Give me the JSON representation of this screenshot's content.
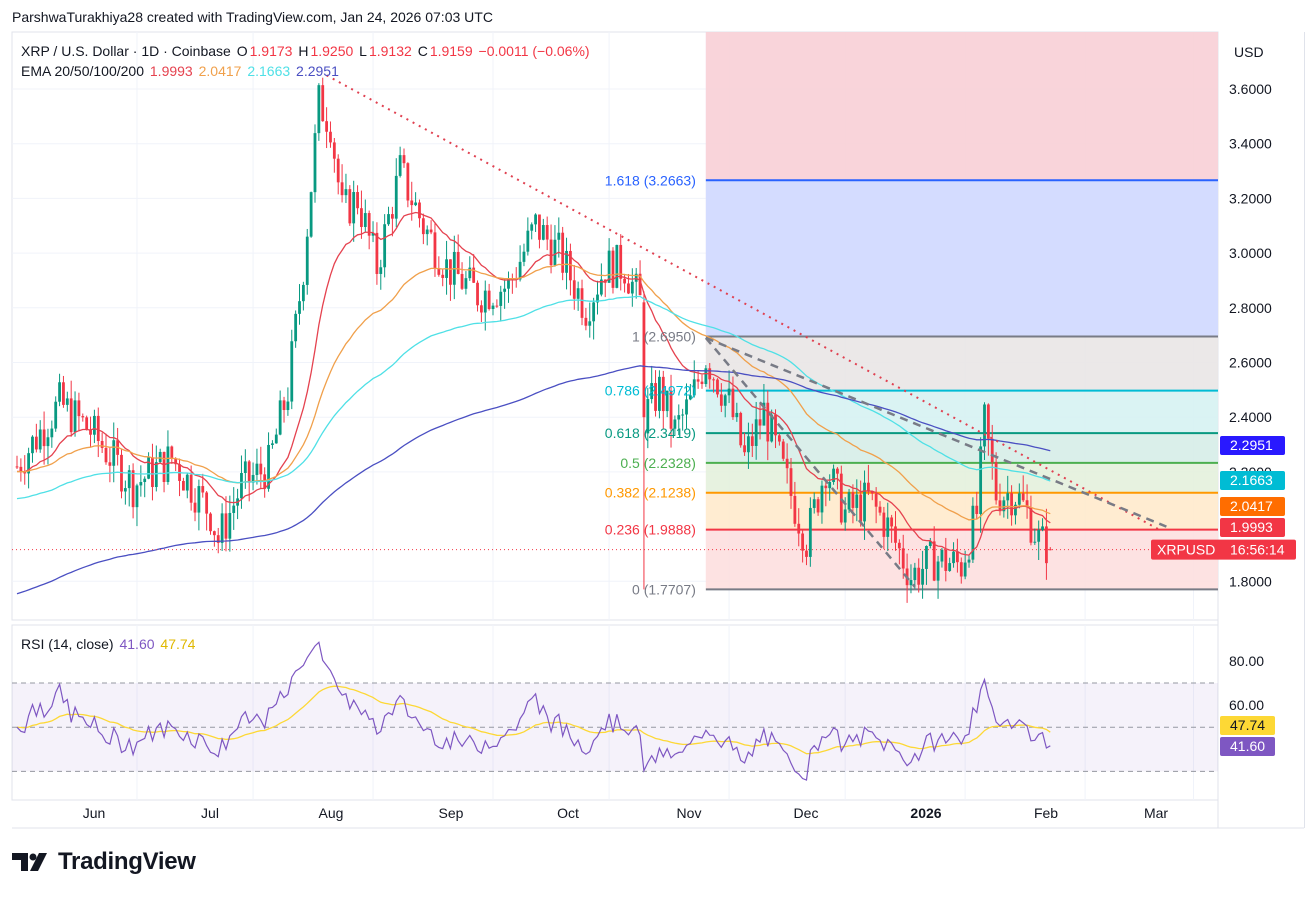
{
  "header": {
    "credit": "ParshwaTurakhiya28 created with TradingView.com, Jan 24, 2026 07:03 UTC"
  },
  "legend": {
    "symbol": "XRP / U.S. Dollar · 1D · Coinbase",
    "o_label": "O",
    "o": "1.9173",
    "h_label": "H",
    "h": "1.9250",
    "l_label": "L",
    "l": "1.9132",
    "c_label": "C",
    "c": "1.9159",
    "change": "−0.0011 (−0.06%)",
    "ema_label": "EMA 20/50/100/200",
    "ema_values": [
      "1.9993",
      "2.0417",
      "2.1663",
      "2.2951"
    ],
    "rsi_label": "RSI (14, close)",
    "rsi_values": [
      "41.60",
      "47.74"
    ]
  },
  "currency": "USD",
  "logo": {
    "text": "TradingView"
  },
  "colors": {
    "up": "#089981",
    "down": "#f23645",
    "ema20": "#e5424f",
    "ema50": "#f0a04b",
    "ema100": "#4fe0e6",
    "ema200": "#4a4fc2",
    "rsi": "#7e57c2",
    "rsi_ma": "#fdd835",
    "trend": "#e04050"
  },
  "chart_data": {
    "type": "candlestick",
    "title": "XRP / U.S. Dollar · 1D · Coinbase",
    "price_axis": {
      "ticks": [
        "3.6000",
        "3.4000",
        "3.2000",
        "3.0000",
        "2.8000",
        "2.6000",
        "2.4000",
        "2.2000",
        "1.8000"
      ],
      "range": [
        1.62,
        3.82
      ]
    },
    "time_axis": [
      "Jun",
      "Jul",
      "Aug",
      "Sep",
      "Oct",
      "Nov",
      "Dec",
      "2026",
      "Feb",
      "Mar"
    ],
    "last_price": {
      "label": "XRPUSD",
      "value": 1.9159,
      "countdown": "16:56:14"
    },
    "ema_tags": [
      {
        "name": "EMA 20",
        "value": 1.9993,
        "label": "1.9993"
      },
      {
        "name": "EMA 50",
        "value": 2.0417,
        "label": "2.0417"
      },
      {
        "name": "EMA 100",
        "value": 2.1663,
        "label": "2.1663"
      },
      {
        "name": "EMA 200",
        "value": 2.2951,
        "label": "2.2951"
      }
    ],
    "fibonacci": [
      {
        "ratio": "1.618",
        "price": 3.2663,
        "label": "1.618 (3.2663)"
      },
      {
        "ratio": "1",
        "price": 2.695,
        "label": "1 (2.6950)"
      },
      {
        "ratio": "0.786",
        "price": 2.4972,
        "label": "0.786 (2.4972)"
      },
      {
        "ratio": "0.618",
        "price": 2.3419,
        "label": "0.618 (2.3419)"
      },
      {
        "ratio": "0.5",
        "price": 2.2328,
        "label": "0.5 (2.2328)"
      },
      {
        "ratio": "0.382",
        "price": 2.1238,
        "label": "0.382 (2.1238)"
      },
      {
        "ratio": "0.236",
        "price": 1.9888,
        "label": "0.236 (1.9888)"
      },
      {
        "ratio": "0",
        "price": 1.7707,
        "label": "0 (1.7707)"
      }
    ],
    "close_path": [
      [
        "2025-05-01",
        2.22
      ],
      [
        "2025-05-12",
        2.45
      ],
      [
        "2025-05-20",
        2.35
      ],
      [
        "2025-05-31",
        2.15
      ],
      [
        "2025-06-10",
        2.25
      ],
      [
        "2025-06-20",
        2.05
      ],
      [
        "2025-06-22",
        1.95
      ],
      [
        "2025-06-28",
        2.15
      ],
      [
        "2025-07-05",
        2.22
      ],
      [
        "2025-07-10",
        2.5
      ],
      [
        "2025-07-14",
        2.95
      ],
      [
        "2025-07-18",
        3.55
      ],
      [
        "2025-07-21",
        3.48
      ],
      [
        "2025-07-24",
        3.15
      ],
      [
        "2025-07-28",
        3.2
      ],
      [
        "2025-08-02",
        2.95
      ],
      [
        "2025-08-08",
        3.3
      ],
      [
        "2025-08-14",
        3.1
      ],
      [
        "2025-08-20",
        2.95
      ],
      [
        "2025-08-28",
        2.85
      ],
      [
        "2025-09-05",
        2.88
      ],
      [
        "2025-09-12",
        3.1
      ],
      [
        "2025-09-18",
        3.0
      ],
      [
        "2025-09-25",
        2.8
      ],
      [
        "2025-09-30",
        2.95
      ],
      [
        "2025-10-05",
        2.95
      ],
      [
        "2025-10-09",
        2.82
      ],
      [
        "2025-10-10",
        2.4
      ],
      [
        "2025-10-14",
        2.5
      ],
      [
        "2025-10-18",
        2.35
      ],
      [
        "2025-10-22",
        2.45
      ],
      [
        "2025-10-26",
        2.62
      ],
      [
        "2025-11-01",
        2.45
      ],
      [
        "2025-11-05",
        2.25
      ],
      [
        "2025-11-10",
        2.42
      ],
      [
        "2025-11-15",
        2.2
      ],
      [
        "2025-11-21",
        1.95
      ],
      [
        "2025-11-26",
        2.22
      ],
      [
        "2025-12-01",
        2.05
      ],
      [
        "2025-12-07",
        2.1
      ],
      [
        "2025-12-12",
        2.0
      ],
      [
        "2025-12-18",
        1.82
      ],
      [
        "2025-12-24",
        1.88
      ],
      [
        "2025-12-31",
        1.86
      ],
      [
        "2026-01-04",
        2.05
      ],
      [
        "2026-01-06",
        2.38
      ],
      [
        "2026-01-09",
        2.12
      ],
      [
        "2026-01-14",
        2.12
      ],
      [
        "2026-01-17",
        2.05
      ],
      [
        "2026-01-20",
        1.95
      ],
      [
        "2026-01-23",
        1.92
      ]
    ],
    "rsi_axis": {
      "ticks": [
        "80.00",
        "60.00"
      ],
      "range": [
        0,
        100
      ],
      "band": [
        30,
        70
      ]
    },
    "rsi_tags": [
      {
        "name": "RSI",
        "value": 41.6,
        "label": "41.60"
      },
      {
        "name": "RSI MA",
        "value": 47.74,
        "label": "47.74"
      }
    ]
  }
}
